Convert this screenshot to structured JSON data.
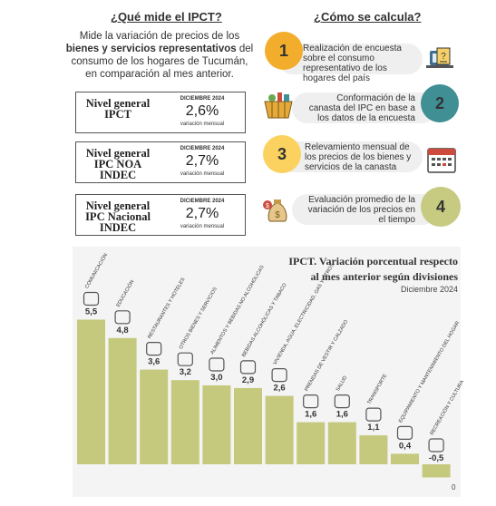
{
  "left": {
    "heading": "¿Qué mide el IPCT?",
    "desc_1": "Mide la variación de precios de los",
    "desc_2": "bienes y servicios representativos",
    "desc_3": " del",
    "desc_4": "consumo de los hogares de Tucumán,",
    "desc_5": "en comparación al mes anterior.",
    "cards": [
      {
        "label": "Nivel general IPCT",
        "date": "DICIEMBRE 2024",
        "value": "2,6%",
        "sub": "variación mensual"
      },
      {
        "label": "Nivel general IPC NOA INDEC",
        "date": "DICIEMBRE 2024",
        "value": "2,7%",
        "sub": "variación mensual"
      },
      {
        "label": "Nivel general IPC Nacional INDEC",
        "date": "DICIEMBRE 2024",
        "value": "2,7%",
        "sub": "variación mensual"
      }
    ]
  },
  "right": {
    "heading": "¿Cómo se calcula?",
    "steps": [
      {
        "num": "1",
        "text": "Realización de encuesta sobre el consumo representativo de los hogares del país",
        "color": "#f3ad2c",
        "icon": "survey-icon"
      },
      {
        "num": "2",
        "text": "Conformación de la canasta del IPC en base a los datos de la encuesta",
        "color": "#3f8f95",
        "icon": "shopping-basket-icon"
      },
      {
        "num": "3",
        "text": "Relevamiento mensual de los precios de los bienes y servicios de la canasta",
        "color": "#fbd25f",
        "icon": "calendar-icon"
      },
      {
        "num": "4",
        "text": "Evaluación promedio de la variación de los precios en el tiempo",
        "color": "#c7cb82",
        "icon": "money-bag-icon"
      }
    ]
  },
  "chart_data": {
    "type": "bar",
    "title_1": "IPCT. Variación porcentual respecto",
    "title_2": "al mes anterior según divisiones",
    "subtitle": "Diciembre 2024",
    "zero_label": "0",
    "bar_color": "#c5c97d",
    "categories": [
      "COMUNICACIÓN",
      "EDUCACIÓN",
      "RESTAURANTES Y HOTELES",
      "OTROS BIENES Y SERVICIOS",
      "ALIMENTOS Y BEBIDAS NO ALCOHÓLICAS",
      "BEBIDAS ALCOHÓLICAS Y TABACO",
      "VIVIENDA, AGUA, ELECTRICIDAD, GAS Y OTROS",
      "PRENDAS DE VESTIR Y CALZADO",
      "SALUD",
      "TRANSPORTE",
      "EQUIPAMIENTO Y MANTENIMIENTO DEL HOGAR",
      "RECREACIÓN Y CULTURA"
    ],
    "values": [
      5.5,
      4.8,
      3.6,
      3.2,
      3.0,
      2.9,
      2.6,
      1.6,
      1.6,
      1.1,
      0.4,
      -0.5
    ],
    "value_labels": [
      "5,5",
      "4,8",
      "3,6",
      "3,2",
      "3,0",
      "2,9",
      "2,6",
      "1,6",
      "1,6",
      "1,1",
      "0,4",
      "-0,5"
    ],
    "icons": [
      "phone-icon",
      "book-icon",
      "dining-icon",
      "misc-icon",
      "food-icon",
      "drinks-icon",
      "house-icon",
      "clothes-icon",
      "hospital-icon",
      "bus-icon",
      "appliance-icon",
      "camera-icon"
    ]
  }
}
